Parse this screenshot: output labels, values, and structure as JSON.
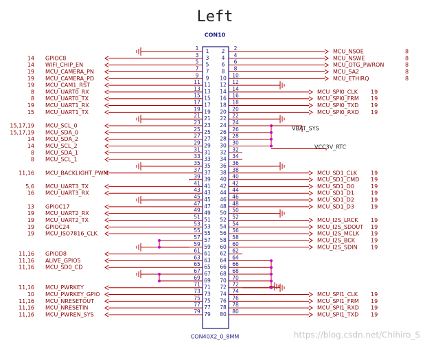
{
  "title": "Left",
  "connector": "CON10",
  "part": "CON40X2_0_8MM",
  "power_labels": [
    "VBAT_SYS",
    "VCC3V_RTC"
  ],
  "watermark": "https://blog.csdn.net/Chihiro_S",
  "rows": [
    {
      "left_pin": 1,
      "right_pin": 2,
      "right_net": "MCU_NSOE",
      "right_ref": "8"
    },
    {
      "left_pin": 3,
      "right_pin": 4,
      "left_net": "GPIOC8",
      "left_ref": "14",
      "right_net": "MCU_NSWE",
      "right_ref": "8"
    },
    {
      "left_pin": 5,
      "right_pin": 6,
      "left_net": "WIFI_CHIP_EN",
      "left_ref": "14",
      "right_net": "MCU_OTG_PWRON",
      "right_ref": "8"
    },
    {
      "left_pin": 7,
      "right_pin": 8,
      "left_net": "MCU_CAMERA_PN",
      "left_ref": "19",
      "right_net": "MCU_SA2",
      "right_ref": "8"
    },
    {
      "left_pin": 9,
      "right_pin": 10,
      "left_net": "MCU_CAMERA_PD",
      "left_ref": "19",
      "right_net": "MCU_ETHIRQ",
      "right_ref": "8"
    },
    {
      "left_pin": 11,
      "right_pin": 12,
      "left_net": "MCU_CAM1_RST",
      "left_ref": "19"
    },
    {
      "left_pin": 13,
      "right_pin": 14,
      "left_net": "MCU_UART0_RX",
      "left_ref": "8",
      "right_net": "MCU_SPI0_CLK",
      "right_ref": "19"
    },
    {
      "left_pin": 15,
      "right_pin": 16,
      "left_net": "MCU_UART0_TX",
      "left_ref": "8",
      "right_net": "MCU_SPI0_FRM",
      "right_ref": "19"
    },
    {
      "left_pin": 17,
      "right_pin": 18,
      "left_net": "MCU_UART1_RX",
      "left_ref": "19",
      "right_net": "MCU_SPI0_TXD",
      "right_ref": "19"
    },
    {
      "left_pin": 19,
      "right_pin": 20,
      "left_net": "MCU_UART1_TX",
      "left_ref": "15",
      "right_net": "MCU_SPI0_RXD",
      "right_ref": "19"
    },
    {
      "left_pin": 21,
      "right_pin": 22
    },
    {
      "left_pin": 23,
      "right_pin": 24,
      "left_net": "MCU_SCL_0",
      "left_ref": "15,17,19"
    },
    {
      "left_pin": 25,
      "right_pin": 26,
      "left_net": "MCU_SDA_0",
      "left_ref": "15,17,19"
    },
    {
      "left_pin": 27,
      "right_pin": 28,
      "left_net": "MCU_SDA_2",
      "left_ref": "14"
    },
    {
      "left_pin": 29,
      "right_pin": 30,
      "left_net": "MCU_SCL_2",
      "left_ref": "14"
    },
    {
      "left_pin": 31,
      "right_pin": 32,
      "left_net": "MCU_SDA_1",
      "left_ref": "8"
    },
    {
      "left_pin": 33,
      "right_pin": 34,
      "left_net": "MCU_SCL_1",
      "left_ref": "8"
    },
    {
      "left_pin": 35,
      "right_pin": 36
    },
    {
      "left_pin": 37,
      "right_pin": 38,
      "left_net": "MCU_BACKLIGHT_PWM",
      "left_ref": "11,16",
      "right_net": "MCU_SD1_CLK",
      "right_ref": "19"
    },
    {
      "left_pin": 39,
      "right_pin": 40,
      "right_net": "MCU_SD1_CMD",
      "right_ref": "19"
    },
    {
      "left_pin": 41,
      "right_pin": 42,
      "left_net": "MCU_UART3_TX",
      "left_ref": "5,6",
      "right_net": "MCU_SD1_D0",
      "right_ref": "19"
    },
    {
      "left_pin": 43,
      "right_pin": 44,
      "left_net": "MCU_UART3_RX",
      "left_ref": "16",
      "right_net": "MCU_SD1_D1",
      "right_ref": "19"
    },
    {
      "left_pin": 45,
      "right_pin": 46,
      "right_net": "MCU_SD1_D2",
      "right_ref": "19"
    },
    {
      "left_pin": 47,
      "right_pin": 48,
      "left_net": "GPIOC17",
      "left_ref": "13",
      "right_net": "MCU_SD1_D3",
      "right_ref": "19"
    },
    {
      "left_pin": 49,
      "right_pin": 50,
      "left_net": "MCU_UART2_RX",
      "left_ref": "19"
    },
    {
      "left_pin": 51,
      "right_pin": 52,
      "left_net": "MCU_UART2_TX",
      "left_ref": "19",
      "right_net": "MCU_I2S_LRCK",
      "right_ref": "19"
    },
    {
      "left_pin": 53,
      "right_pin": 54,
      "left_net": "GPIOC24",
      "left_ref": "19",
      "right_net": "MCU_I2S_SDOUT",
      "right_ref": "19"
    },
    {
      "left_pin": 55,
      "right_pin": 56,
      "left_net": "MCU_ISO7816_CLK",
      "left_ref": "19",
      "right_net": "MCU_I2S_MCLK",
      "right_ref": "19"
    },
    {
      "left_pin": 57,
      "right_pin": 58,
      "right_net": "MCU_I2S_BCK",
      "right_ref": "19"
    },
    {
      "left_pin": 59,
      "right_pin": 60,
      "right_net": "MCU_I2S_SDIN",
      "right_ref": "19"
    },
    {
      "left_pin": 61,
      "right_pin": 62,
      "left_net": "GPIOD8",
      "left_ref": "11,16"
    },
    {
      "left_pin": 63,
      "right_pin": 64,
      "left_net": "ALIVE_GPIO5",
      "left_ref": "11,16"
    },
    {
      "left_pin": 65,
      "right_pin": 66,
      "left_net": "MCU_SD0_CD",
      "left_ref": "11,16"
    },
    {
      "left_pin": 67,
      "right_pin": 68
    },
    {
      "left_pin": 69,
      "right_pin": 70
    },
    {
      "left_pin": 71,
      "right_pin": 72,
      "left_net": "MCU_PWRKEY",
      "left_ref": "11,16"
    },
    {
      "left_pin": 73,
      "right_pin": 74,
      "left_net": "MCU_PWRKEY_GPIO",
      "left_ref": "10",
      "right_net": "MCU_SPI1_CLK",
      "right_ref": "19"
    },
    {
      "left_pin": 75,
      "right_pin": 76,
      "left_net": "MCU_NRESETOUT",
      "left_ref": "11,16",
      "right_net": "MCU_SPI1_FRM",
      "right_ref": "19"
    },
    {
      "left_pin": 77,
      "right_pin": 78,
      "left_net": "MCU_NRESETIN",
      "left_ref": "11,16",
      "right_net": "MCU_SPI1_RXD",
      "right_ref": "19"
    },
    {
      "left_pin": 79,
      "right_pin": 80,
      "left_net": "MCU_PWREN_SYS",
      "left_ref": "11,16",
      "right_net": "MCU_SPI1_TXD",
      "right_ref": "19"
    }
  ]
}
